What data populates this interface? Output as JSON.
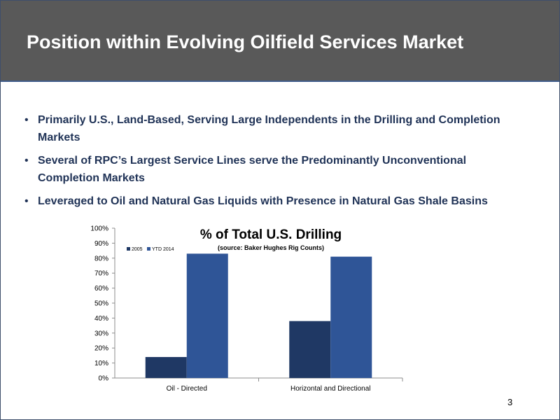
{
  "header": {
    "title": "Position within Evolving Oilfield Services Market"
  },
  "bullets": [
    "Primarily U.S., Land-Based, Serving Large Independents in the Drilling and Completion Markets",
    "Several of RPC’s Largest Service Lines serve the Predominantly Unconventional Completion Markets",
    "Leveraged to Oil and Natural Gas Liquids with Presence in Natural Gas Shale Basins"
  ],
  "bullet_glyph": "•",
  "page_number": "3",
  "colors": {
    "header_bg": "#595959",
    "accent": "#3f5c8a",
    "bullet_text": "#1f3256",
    "series_2005": "#1f3864",
    "series_2014": "#2f5597"
  },
  "chart_data": {
    "type": "bar",
    "title": "% of Total U.S. Drilling",
    "subtitle": "(source: Baker Hughes Rig Counts)",
    "categories": [
      "Oil - Directed",
      "Horizontal and Directional"
    ],
    "series": [
      {
        "name": "2005",
        "values": [
          14,
          38
        ]
      },
      {
        "name": "YTD 2014",
        "values": [
          83,
          81
        ]
      }
    ],
    "y_ticks": [
      "0%",
      "10%",
      "20%",
      "30%",
      "40%",
      "50%",
      "60%",
      "70%",
      "80%",
      "90%",
      "100%"
    ],
    "ylim": [
      0,
      100
    ],
    "grid": false,
    "legend": "top-left"
  }
}
